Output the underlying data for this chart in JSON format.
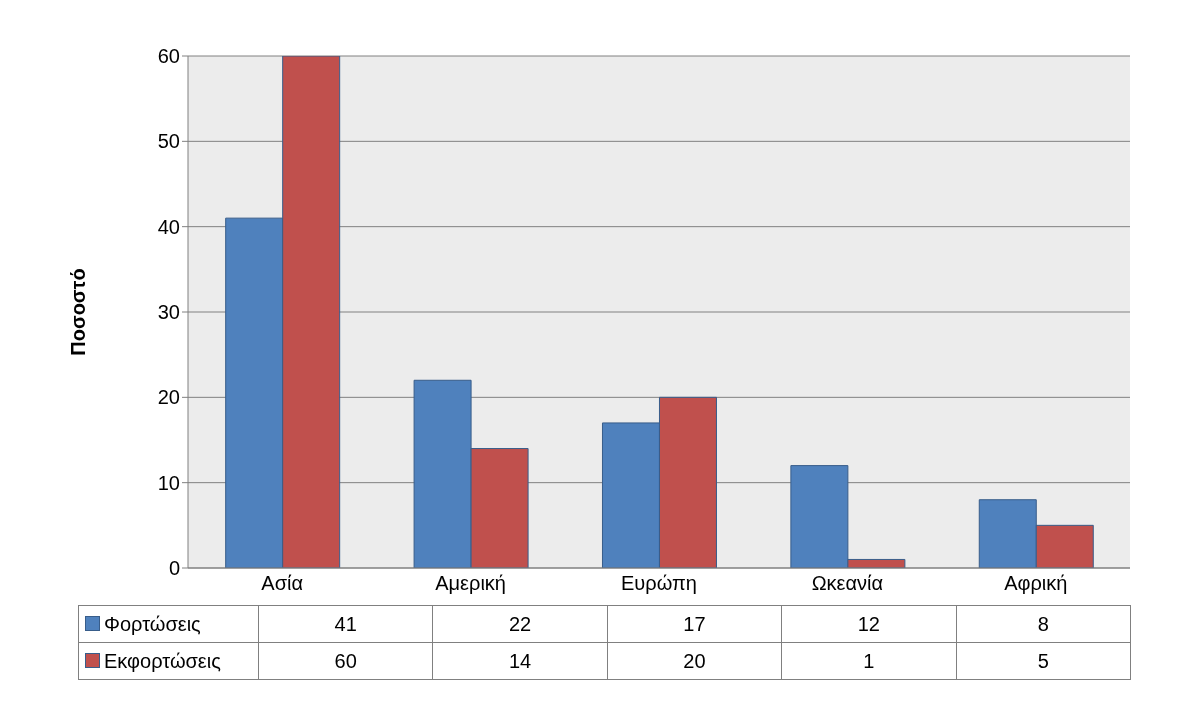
{
  "chart_data": {
    "type": "bar",
    "ylabel": "Ποσοστό",
    "categories": [
      "Ασία",
      "Αμερική",
      "Ευρώπη",
      "Ωκεανία",
      "Αφρική"
    ],
    "series": [
      {
        "name": "Φορτώσεις",
        "color": "#4f81bd",
        "values": [
          41,
          22,
          17,
          12,
          8
        ]
      },
      {
        "name": "Εκφορτώσεις",
        "color": "#c0504d",
        "values": [
          60,
          14,
          20,
          1,
          5
        ]
      }
    ],
    "ylim": [
      0,
      60
    ],
    "yticks": [
      0,
      10,
      20,
      30,
      40,
      50,
      60
    ],
    "grid": "y",
    "legend": "bottom",
    "data_labels": true
  }
}
